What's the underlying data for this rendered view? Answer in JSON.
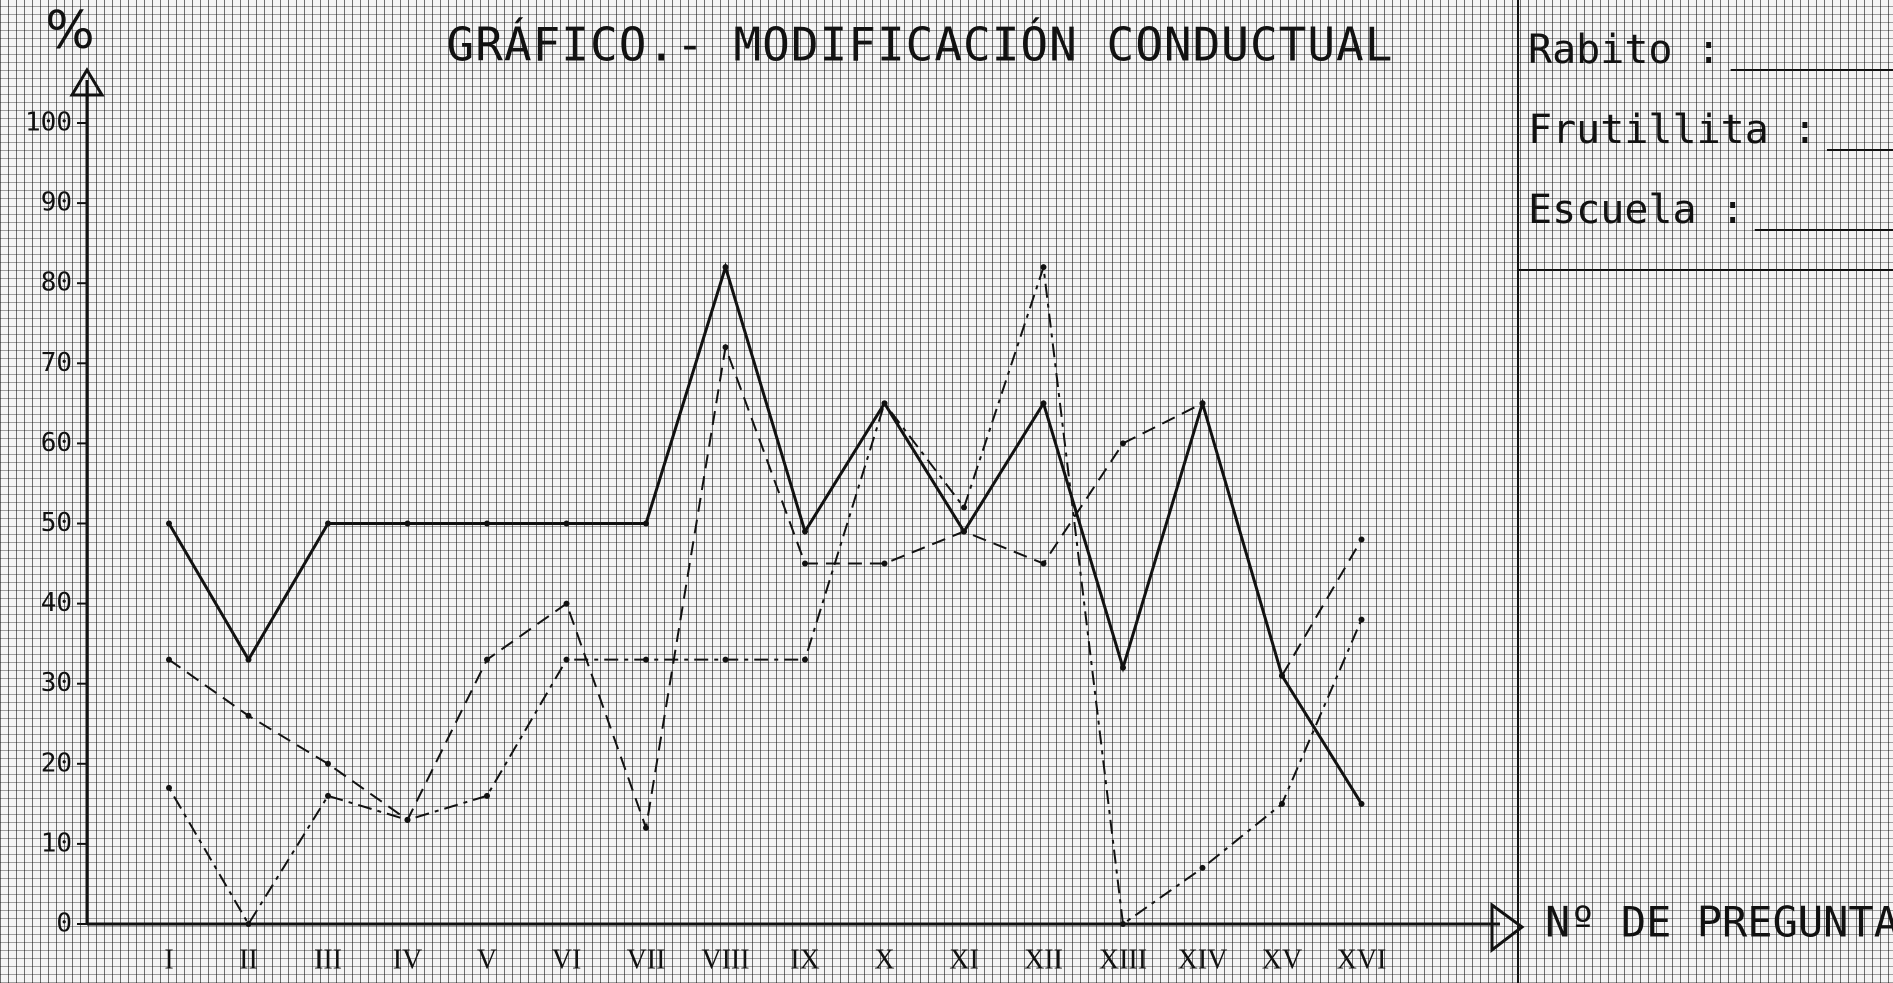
{
  "chart_data": {
    "type": "line",
    "title": "GRÁFICO.- MODIFICACIÓN CONDUCTUAL",
    "y_label": "%",
    "x_label": "Nº DE PREGUNTAS",
    "categories": [
      "I",
      "II",
      "III",
      "IV",
      "V",
      "VI",
      "VII",
      "VIII",
      "IX",
      "X",
      "XI",
      "XII",
      "XIII",
      "XIV",
      "XV",
      "XVI"
    ],
    "series": [
      {
        "color": "#111111",
        "style": "solid",
        "values": [
          50,
          33,
          50,
          50,
          50,
          50,
          50,
          82,
          49,
          65,
          49,
          65,
          32,
          65,
          31,
          15
        ]
      },
      {
        "color": "#111111",
        "style": "dashed",
        "values": [
          33,
          26,
          20,
          13,
          33,
          40,
          12,
          72,
          45,
          45,
          49,
          45,
          60,
          65,
          31,
          48
        ]
      },
      {
        "color": "#111111",
        "style": "dashdot",
        "values": [
          17,
          0,
          16,
          13,
          16,
          33,
          33,
          33,
          33,
          65,
          52,
          82,
          0,
          7,
          15,
          38
        ]
      }
    ],
    "ylim": [
      0,
      100
    ],
    "yticks": [
      0,
      10,
      20,
      30,
      40,
      50,
      60,
      70,
      80,
      90,
      100
    ],
    "form": [
      "Rabito :",
      "Frutillita :",
      "Escuela :"
    ]
  }
}
